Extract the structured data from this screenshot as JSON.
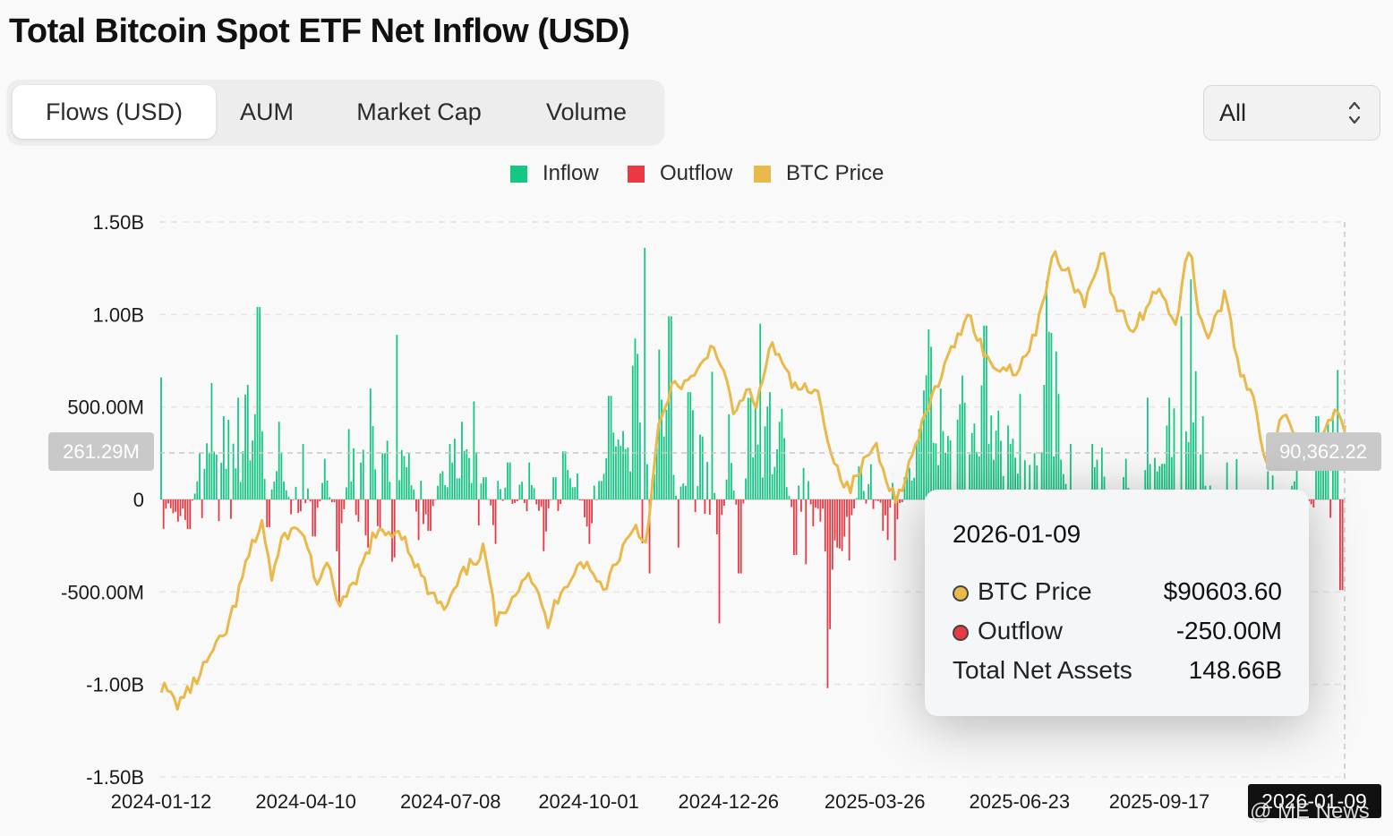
{
  "title": "Total Bitcoin Spot ETF Net Inflow (USD)",
  "tabs": [
    {
      "label": "Flows (USD)",
      "active": true
    },
    {
      "label": "AUM",
      "active": false
    },
    {
      "label": "Market Cap",
      "active": false
    },
    {
      "label": "Volume",
      "active": false
    }
  ],
  "range_select": {
    "value": "All"
  },
  "legend": [
    {
      "label": "Inflow",
      "color": "#16c784"
    },
    {
      "label": "Outflow",
      "color": "#ea3943"
    },
    {
      "label": "BTC Price",
      "color": "#e9b949"
    }
  ],
  "tooltip": {
    "date": "2026-01-09",
    "rows": [
      {
        "label": "BTC Price",
        "value": "$90603.60",
        "dot_color": "#e9b949"
      },
      {
        "label": "Outflow",
        "value": "-250.00M",
        "dot_color": "#ea3943"
      },
      {
        "label": "Total Net Assets",
        "value": "148.66B"
      }
    ]
  },
  "crosshair": {
    "left_value": "261.29M",
    "right_value": "90,362.22",
    "x_label": "2026-01-09"
  },
  "watermark": "@ ME News",
  "chart_data": {
    "type": "bar",
    "title": "Total Bitcoin Spot ETF Net Inflow (USD)",
    "y_ticks": [
      "1.50B",
      "1.00B",
      "500.00M",
      "0",
      "-500.00M",
      "-1.00B",
      "-1.50B"
    ],
    "ylim": [
      -1.5,
      1.5
    ],
    "y_unit": "B USD",
    "x_ticks": [
      "2024-01-12",
      "2024-04-10",
      "2024-07-08",
      "2024-10-01",
      "2024-12-26",
      "2025-03-26",
      "2025-06-23",
      "2025-09-17",
      "2026-01-09"
    ],
    "x_range": [
      "2024-01-12",
      "2026-01-09"
    ],
    "grid": true,
    "legend_position": "top-center",
    "price_range": [
      26000,
      128000
    ],
    "flow_anchors": [
      [
        "2024-01-12",
        0.66
      ],
      [
        "2024-01-15",
        -0.05
      ],
      [
        "2024-01-22",
        -0.12
      ],
      [
        "2024-01-29",
        -0.16
      ],
      [
        "2024-02-05",
        0.25
      ],
      [
        "2024-02-12",
        0.63
      ],
      [
        "2024-02-20",
        0.45
      ],
      [
        "2024-02-28",
        0.55
      ],
      [
        "2024-03-05",
        0.62
      ],
      [
        "2024-03-12",
        1.04
      ],
      [
        "2024-03-18",
        -0.15
      ],
      [
        "2024-03-25",
        0.42
      ],
      [
        "2024-04-01",
        -0.08
      ],
      [
        "2024-04-08",
        0.3
      ],
      [
        "2024-04-15",
        -0.2
      ],
      [
        "2024-04-22",
        0.22
      ],
      [
        "2024-04-29",
        -0.28
      ],
      [
        "2024-05-01",
        -0.56
      ],
      [
        "2024-05-06",
        0.38
      ],
      [
        "2024-05-14",
        0.2
      ],
      [
        "2024-05-20",
        0.6
      ],
      [
        "2024-05-28",
        0.25
      ],
      [
        "2024-06-05",
        0.89
      ],
      [
        "2024-06-12",
        0.25
      ],
      [
        "2024-06-18",
        -0.22
      ],
      [
        "2024-06-25",
        -0.17
      ],
      [
        "2024-07-02",
        0.14
      ],
      [
        "2024-07-08",
        0.3
      ],
      [
        "2024-07-15",
        0.42
      ],
      [
        "2024-07-22",
        0.53
      ],
      [
        "2024-07-29",
        0.12
      ],
      [
        "2024-08-05",
        -0.24
      ],
      [
        "2024-08-13",
        0.2
      ],
      [
        "2024-08-20",
        0.08
      ],
      [
        "2024-08-26",
        0.2
      ],
      [
        "2024-09-03",
        -0.28
      ],
      [
        "2024-09-10",
        0.12
      ],
      [
        "2024-09-16",
        0.26
      ],
      [
        "2024-09-24",
        0.14
      ],
      [
        "2024-10-01",
        -0.24
      ],
      [
        "2024-10-08",
        0.1
      ],
      [
        "2024-10-14",
        0.56
      ],
      [
        "2024-10-21",
        0.29
      ],
      [
        "2024-10-29",
        0.87
      ],
      [
        "2024-11-05",
        1.36
      ],
      [
        "2024-11-08",
        -0.4
      ],
      [
        "2024-11-13",
        0.81
      ],
      [
        "2024-11-20",
        0.99
      ],
      [
        "2024-11-25",
        -0.26
      ],
      [
        "2024-12-02",
        0.58
      ],
      [
        "2024-12-10",
        0.34
      ],
      [
        "2024-12-16",
        0.69
      ],
      [
        "2024-12-20",
        -0.67
      ],
      [
        "2024-12-26",
        0.46
      ],
      [
        "2025-01-02",
        -0.4
      ],
      [
        "2025-01-08",
        0.55
      ],
      [
        "2025-01-15",
        0.95
      ],
      [
        "2025-01-21",
        0.58
      ],
      [
        "2025-01-28",
        0.49
      ],
      [
        "2025-02-05",
        -0.3
      ],
      [
        "2025-02-12",
        -0.35
      ],
      [
        "2025-02-20",
        -0.12
      ],
      [
        "2025-02-25",
        -1.02
      ],
      [
        "2025-03-03",
        -0.26
      ],
      [
        "2025-03-10",
        -0.33
      ],
      [
        "2025-03-17",
        0.18
      ],
      [
        "2025-03-24",
        0.19
      ],
      [
        "2025-03-31",
        -0.17
      ],
      [
        "2025-04-07",
        -0.33
      ],
      [
        "2025-04-14",
        0.12
      ],
      [
        "2025-04-22",
        0.38
      ],
      [
        "2025-04-28",
        0.92
      ],
      [
        "2025-05-05",
        0.6
      ],
      [
        "2025-05-12",
        0.32
      ],
      [
        "2025-05-19",
        0.67
      ],
      [
        "2025-05-26",
        0.41
      ],
      [
        "2025-06-02",
        0.94
      ],
      [
        "2025-06-10",
        0.48
      ],
      [
        "2025-06-16",
        0.4
      ],
      [
        "2025-06-23",
        0.57
      ],
      [
        "2025-07-02",
        0.25
      ],
      [
        "2025-07-10",
        1.18
      ],
      [
        "2025-07-16",
        0.8
      ],
      [
        "2025-07-24",
        0.3
      ],
      [
        "2025-08-01",
        -0.81
      ],
      [
        "2025-08-07",
        0.3
      ],
      [
        "2025-08-13",
        0.28
      ],
      [
        "2025-08-19",
        -0.52
      ],
      [
        "2025-08-27",
        0.22
      ],
      [
        "2025-09-04",
        -0.3
      ],
      [
        "2025-09-10",
        0.55
      ],
      [
        "2025-09-17",
        0.18
      ],
      [
        "2025-09-23",
        0.55
      ],
      [
        "2025-10-01",
        0.99
      ],
      [
        "2025-10-06",
        1.19
      ],
      [
        "2025-10-14",
        0.45
      ],
      [
        "2025-10-21",
        -0.47
      ],
      [
        "2025-10-29",
        0.2
      ],
      [
        "2025-11-05",
        -0.58
      ],
      [
        "2025-11-13",
        -0.87
      ],
      [
        "2025-11-20",
        -0.9
      ],
      [
        "2025-11-26",
        0.13
      ],
      [
        "2025-12-03",
        -0.19
      ],
      [
        "2025-12-10",
        0.22
      ],
      [
        "2025-12-16",
        -0.28
      ],
      [
        "2025-12-23",
        0.45
      ],
      [
        "2026-01-02",
        0.47
      ],
      [
        "2026-01-05",
        0.7
      ],
      [
        "2026-01-07",
        -0.49
      ],
      [
        "2026-01-09",
        -0.25
      ]
    ],
    "price_anchors": [
      [
        "2024-01-12",
        42800
      ],
      [
        "2024-01-22",
        39500
      ],
      [
        "2024-02-01",
        43000
      ],
      [
        "2024-02-10",
        47600
      ],
      [
        "2024-02-20",
        52000
      ],
      [
        "2024-02-28",
        59000
      ],
      [
        "2024-03-05",
        66000
      ],
      [
        "2024-03-14",
        73000
      ],
      [
        "2024-03-20",
        62500
      ],
      [
        "2024-03-28",
        70800
      ],
      [
        "2024-04-08",
        71500
      ],
      [
        "2024-04-17",
        61500
      ],
      [
        "2024-04-24",
        64500
      ],
      [
        "2024-05-01",
        57500
      ],
      [
        "2024-05-10",
        61000
      ],
      [
        "2024-05-21",
        70000
      ],
      [
        "2024-06-07",
        71500
      ],
      [
        "2024-06-24",
        60300
      ],
      [
        "2024-07-05",
        56500
      ],
      [
        "2024-07-15",
        63000
      ],
      [
        "2024-07-29",
        68000
      ],
      [
        "2024-08-05",
        54000
      ],
      [
        "2024-08-14",
        59000
      ],
      [
        "2024-08-25",
        64000
      ],
      [
        "2024-09-06",
        53900
      ],
      [
        "2024-09-13",
        60000
      ],
      [
        "2024-09-27",
        65800
      ],
      [
        "2024-10-10",
        60500
      ],
      [
        "2024-10-21",
        67500
      ],
      [
        "2024-10-29",
        72500
      ],
      [
        "2024-11-05",
        69000
      ],
      [
        "2024-11-13",
        90000
      ],
      [
        "2024-11-22",
        98000
      ],
      [
        "2024-12-05",
        99000
      ],
      [
        "2024-12-17",
        106000
      ],
      [
        "2024-12-30",
        92500
      ],
      [
        "2025-01-07",
        97000
      ],
      [
        "2025-01-13",
        94500
      ],
      [
        "2025-01-21",
        106000
      ],
      [
        "2025-02-03",
        98000
      ],
      [
        "2025-02-20",
        96000
      ],
      [
        "2025-02-28",
        84500
      ],
      [
        "2025-03-10",
        78500
      ],
      [
        "2025-03-18",
        83000
      ],
      [
        "2025-03-26",
        87500
      ],
      [
        "2025-04-08",
        76500
      ],
      [
        "2025-04-21",
        87500
      ],
      [
        "2025-05-01",
        96500
      ],
      [
        "2025-05-12",
        104000
      ],
      [
        "2025-05-22",
        111500
      ],
      [
        "2025-06-05",
        101500
      ],
      [
        "2025-06-22",
        101000
      ],
      [
        "2025-07-01",
        106000
      ],
      [
        "2025-07-14",
        122000
      ],
      [
        "2025-07-25",
        117500
      ],
      [
        "2025-08-02",
        113000
      ],
      [
        "2025-08-13",
        123500
      ],
      [
        "2025-08-20",
        113000
      ],
      [
        "2025-09-01",
        108000
      ],
      [
        "2025-09-17",
        116500
      ],
      [
        "2025-09-27",
        109000
      ],
      [
        "2025-10-06",
        125000
      ],
      [
        "2025-10-10",
        113000
      ],
      [
        "2025-10-17",
        106500
      ],
      [
        "2025-10-27",
        114500
      ],
      [
        "2025-11-05",
        101500
      ],
      [
        "2025-11-15",
        95000
      ],
      [
        "2025-11-21",
        84000
      ],
      [
        "2025-12-03",
        92500
      ],
      [
        "2025-12-17",
        86500
      ],
      [
        "2026-01-05",
        93500
      ],
      [
        "2026-01-09",
        90603.6
      ]
    ]
  }
}
